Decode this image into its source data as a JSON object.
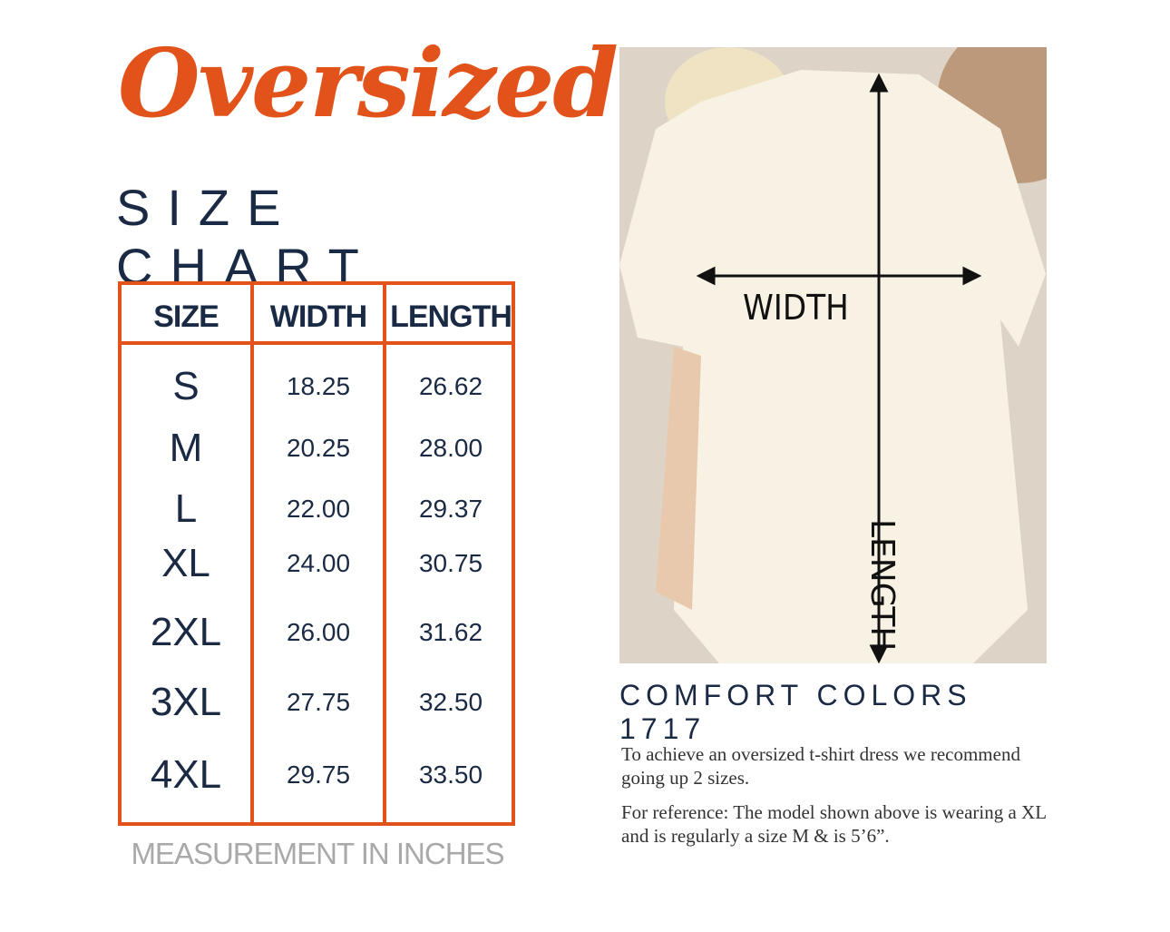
{
  "title": "Oversized",
  "subtitle": "SIZE CHART",
  "colors": {
    "accent": "#e2531b",
    "navy": "#1b2a44",
    "note_gray": "#a9a9a9"
  },
  "table": {
    "headers": [
      "SIZE",
      "WIDTH",
      "LENGTH"
    ],
    "rows": [
      {
        "size": "S",
        "width": "18.25",
        "length": "26.62"
      },
      {
        "size": "M",
        "width": "20.25",
        "length": "28.00"
      },
      {
        "size": "L",
        "width": "22.00",
        "length": "29.37"
      },
      {
        "size": "XL",
        "width": "24.00",
        "length": "30.75"
      },
      {
        "size": "2XL",
        "width": "26.00",
        "length": "31.62"
      },
      {
        "size": "3XL",
        "width": "27.75",
        "length": "32.50"
      },
      {
        "size": "4XL",
        "width": "29.75",
        "length": "33.50"
      }
    ]
  },
  "note": "MEASUREMENT IN INCHES",
  "photo": {
    "width_label": "WIDTH",
    "length_label": "LENGTH"
  },
  "brand": "COMFORT COLORS 1717",
  "paragraphs": [
    "To achieve an oversized t-shirt dress we recommend going up 2 sizes.",
    "For reference: The model shown above is wearing a XL and is regularly a size M & is 5’6”."
  ]
}
